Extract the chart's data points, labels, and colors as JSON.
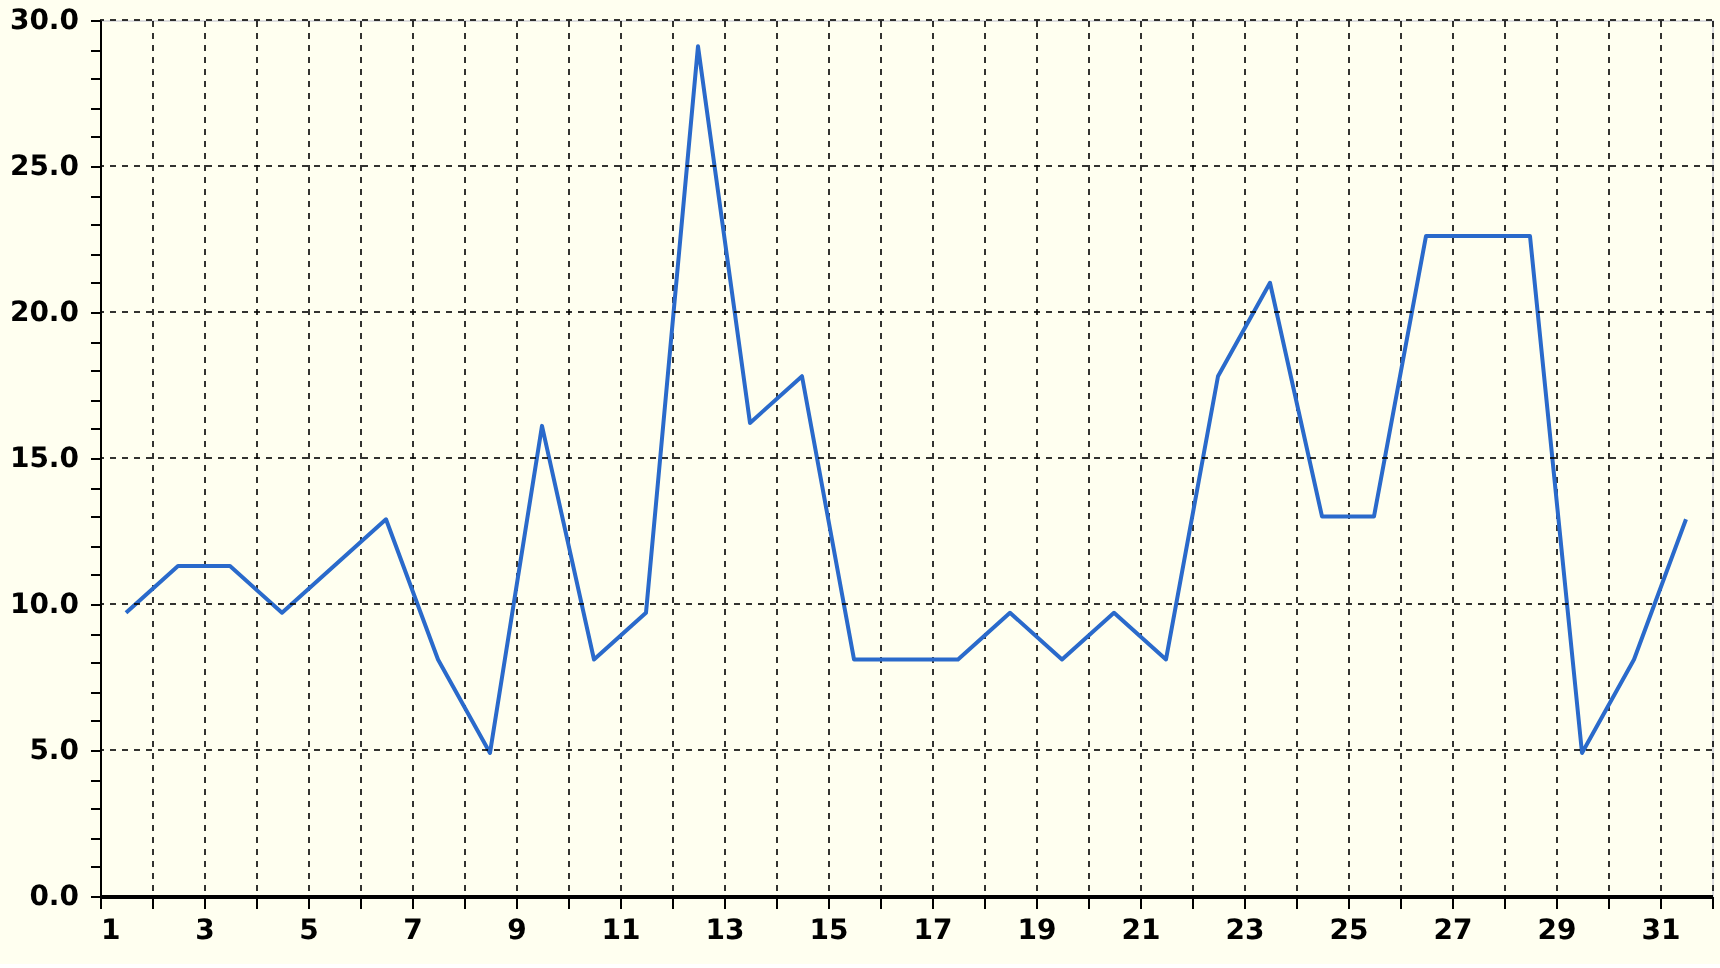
{
  "chart_data": {
    "type": "line",
    "x": [
      1.5,
      2.5,
      3.5,
      4.5,
      5.5,
      6.5,
      7.5,
      8.5,
      9.5,
      10.5,
      11.5,
      12.5,
      13.5,
      14.5,
      15.5,
      16.5,
      17.5,
      18.5,
      19.5,
      20.5,
      21.5,
      22.5,
      23.5,
      24.5,
      25.5,
      26.5,
      27.5,
      28.5,
      29.5,
      30.5,
      31.5
    ],
    "series": [
      {
        "color": "#2a6acb",
        "values": [
          9.7,
          11.3,
          11.3,
          9.7,
          11.3,
          12.9,
          8.1,
          4.9,
          16.1,
          8.1,
          9.7,
          29.1,
          16.2,
          17.8,
          8.1,
          8.1,
          8.1,
          9.7,
          8.1,
          9.7,
          8.1,
          17.8,
          21.0,
          13.0,
          13.0,
          22.6,
          22.6,
          22.6,
          4.9,
          8.1,
          12.9
        ]
      }
    ],
    "xlim": [
      1,
      32
    ],
    "xticks": [
      1,
      {
        "value": 2,
        "label": null
      },
      3,
      {
        "value": 4,
        "label": null
      },
      5,
      {
        "value": 6,
        "label": null
      },
      7,
      {
        "value": 8,
        "label": null
      },
      9,
      {
        "value": 10,
        "label": null
      },
      11,
      {
        "value": 12,
        "label": null
      },
      13,
      {
        "value": 14,
        "label": null
      },
      15,
      {
        "value": 16,
        "label": null
      },
      17,
      {
        "value": 18,
        "label": null
      },
      19,
      {
        "value": 20,
        "label": null
      },
      21,
      {
        "value": 22,
        "label": null
      },
      23,
      {
        "value": 24,
        "label": null
      },
      25,
      {
        "value": 26,
        "label": null
      },
      27,
      {
        "value": 28,
        "label": null
      },
      29,
      {
        "value": 30,
        "label": null
      },
      31,
      {
        "value": 32,
        "label": null
      }
    ],
    "ylim": [
      0,
      30
    ],
    "yticks": [
      {
        "value": 0,
        "label": "0.0"
      },
      {
        "value": 1,
        "label": null
      },
      {
        "value": 2,
        "label": null
      },
      {
        "value": 3,
        "label": null
      },
      {
        "value": 4,
        "label": null
      },
      {
        "value": 5,
        "label": "5.0"
      },
      {
        "value": 6,
        "label": null
      },
      {
        "value": 7,
        "label": null
      },
      {
        "value": 8,
        "label": null
      },
      {
        "value": 9,
        "label": null
      },
      {
        "value": 10,
        "label": "10.0"
      },
      {
        "value": 11,
        "label": null
      },
      {
        "value": 12,
        "label": null
      },
      {
        "value": 13,
        "label": null
      },
      {
        "value": 14,
        "label": null
      },
      {
        "value": 15,
        "label": "15.0"
      },
      {
        "value": 16,
        "label": null
      },
      {
        "value": 17,
        "label": null
      },
      {
        "value": 18,
        "label": null
      },
      {
        "value": 19,
        "label": null
      },
      {
        "value": 20,
        "label": "20.0"
      },
      {
        "value": 21,
        "label": null
      },
      {
        "value": 22,
        "label": null
      },
      {
        "value": 23,
        "label": null
      },
      {
        "value": 24,
        "label": null
      },
      {
        "value": 25,
        "label": "25.0"
      },
      {
        "value": 26,
        "label": null
      },
      {
        "value": 27,
        "label": null
      },
      {
        "value": 28,
        "label": null
      },
      {
        "value": 29,
        "label": null
      },
      {
        "value": 30,
        "label": "30.0"
      }
    ],
    "grid": true,
    "marker": "none",
    "line_style": "solid"
  }
}
